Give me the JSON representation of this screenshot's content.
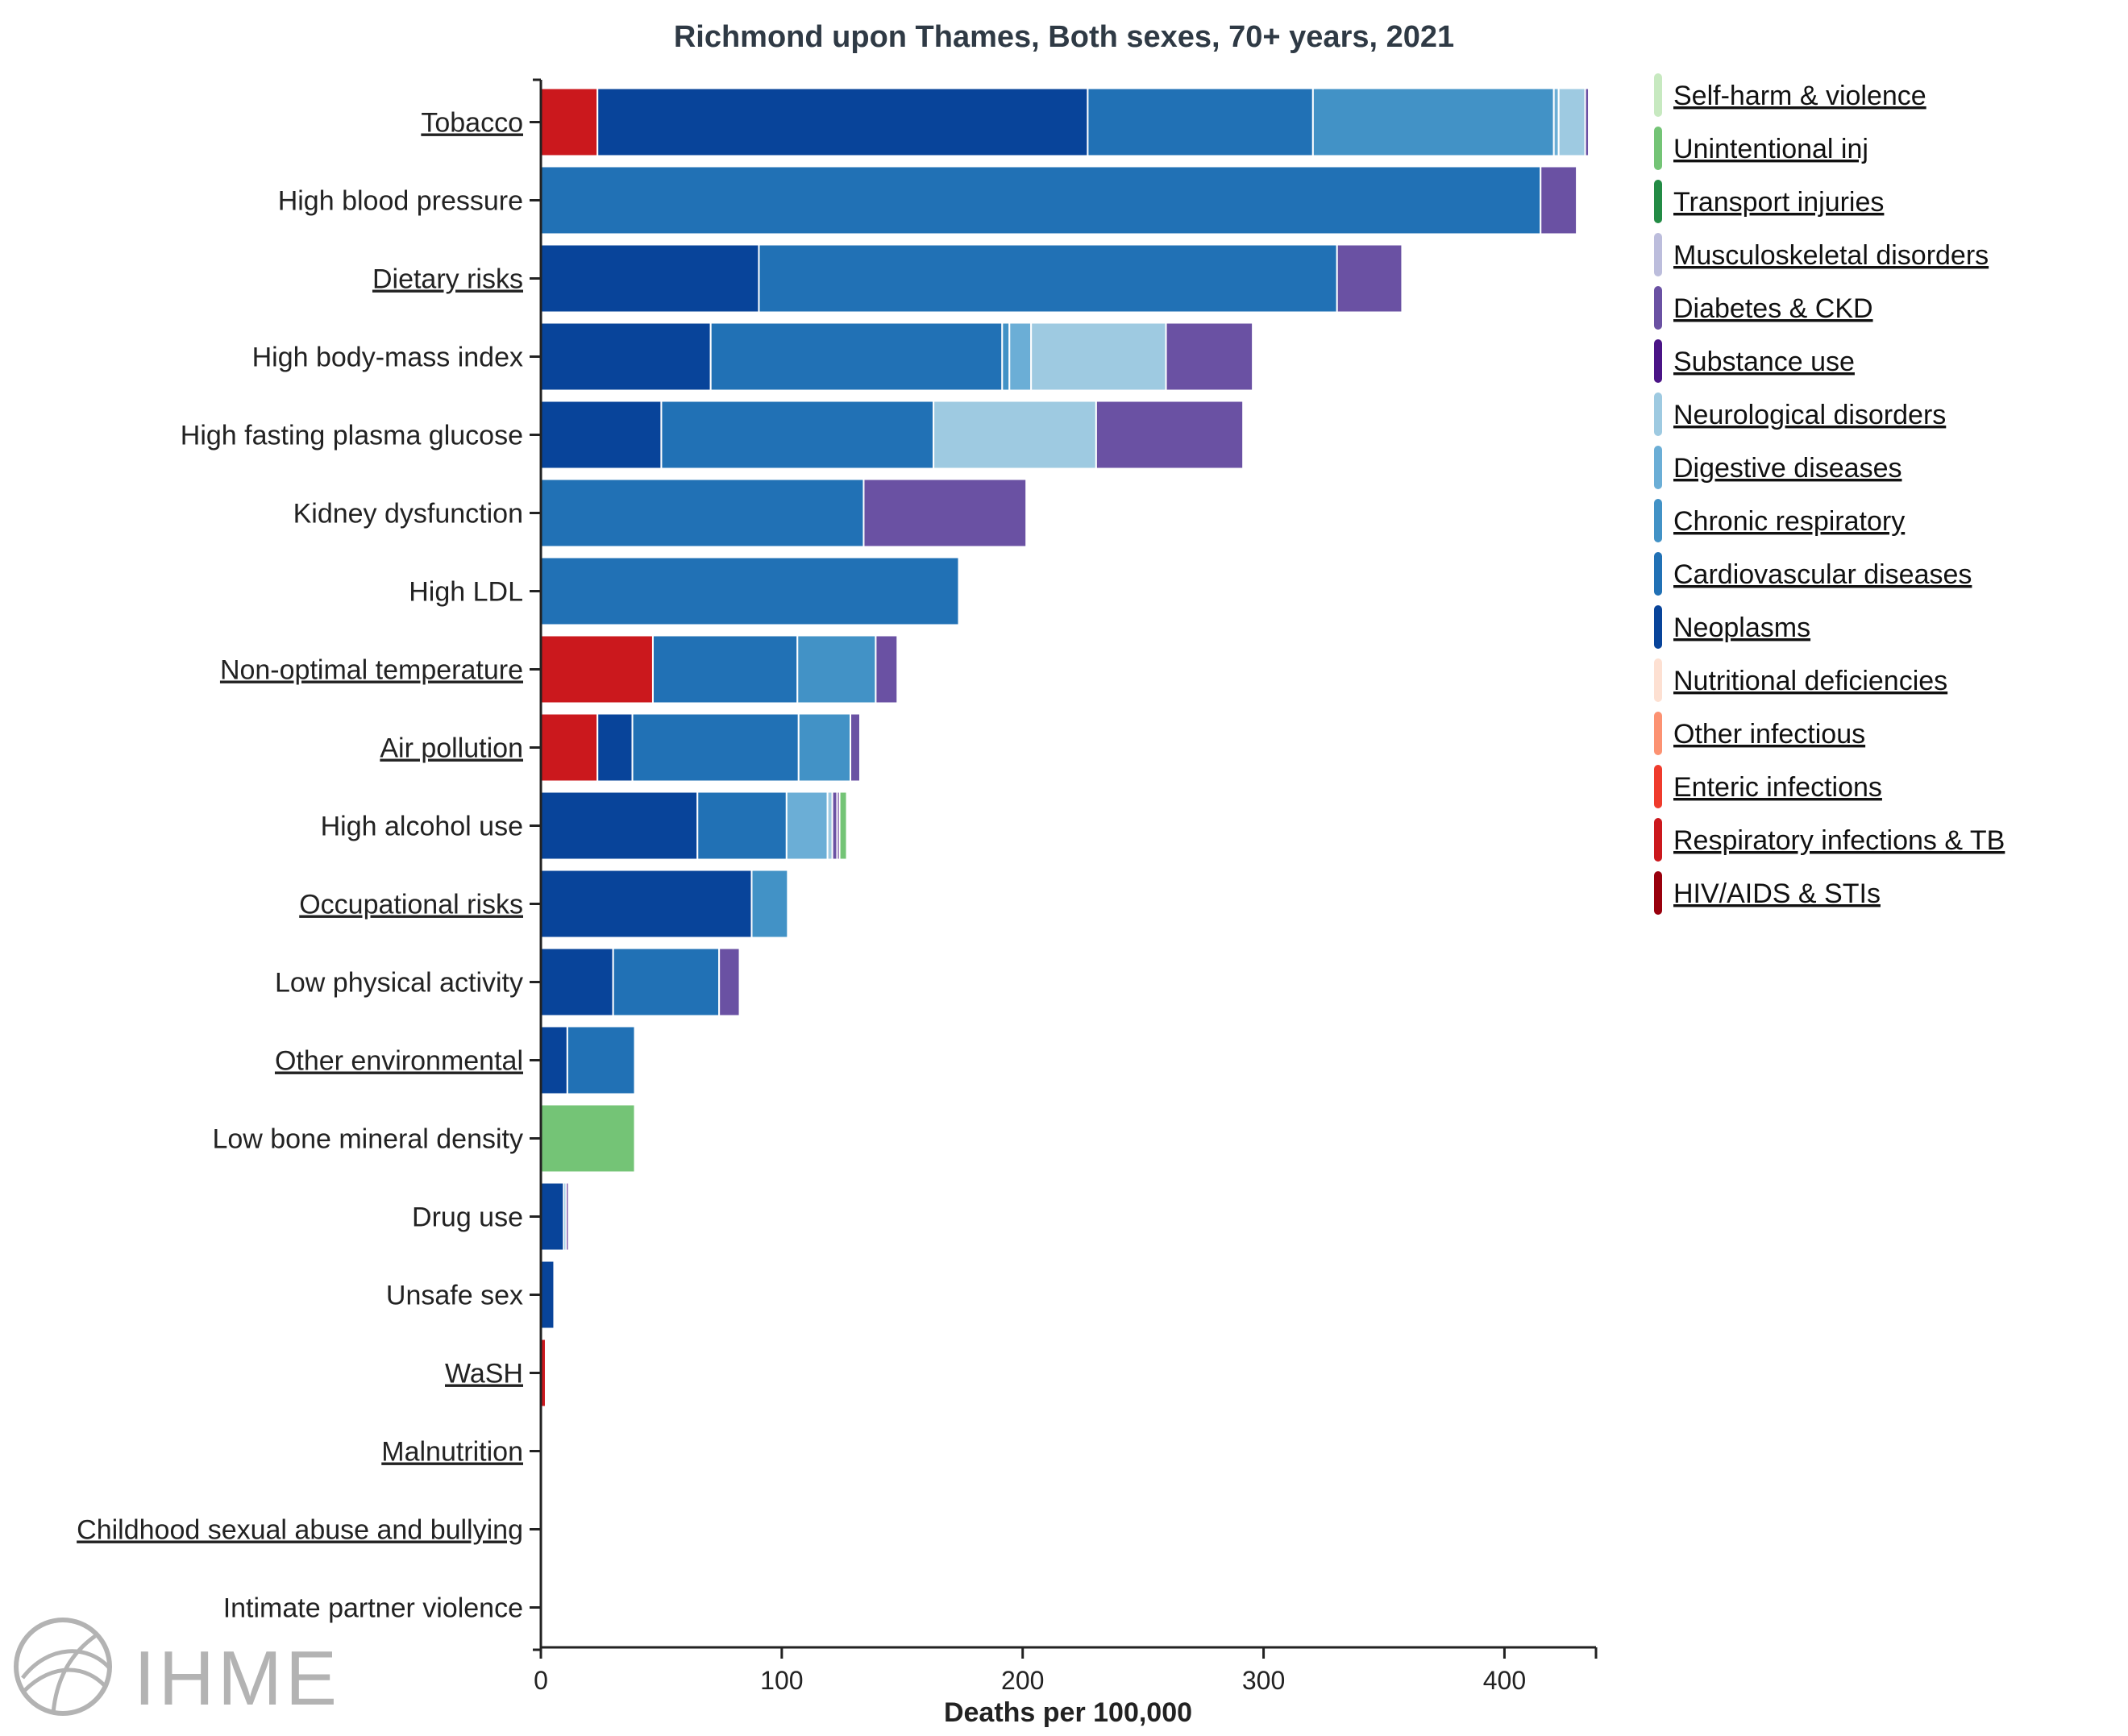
{
  "title": "Richmond upon Thames, Both sexes, 70+ years, 2021",
  "logo": {
    "text": "IHME"
  },
  "colors": {
    "Self-harm & violence": "#c7e9c0",
    "Unintentional inj": "#74c476",
    "Transport injuries": "#238b45",
    "Musculoskeletal disorders": "#bcbddc",
    "Diabetes & CKD": "#6a51a3",
    "Substance use": "#4a1486",
    "Neurological disorders": "#9ecae1",
    "Digestive diseases": "#6baed6",
    "Chronic respiratory": "#4292c6",
    "Cardiovascular diseases": "#2171b5",
    "Neoplasms": "#08449a",
    "Nutritional deficiencies": "#fde0d2",
    "Other infectious": "#fc9272",
    "Enteric infections": "#ef3b2c",
    "Respiratory infections & TB": "#cb181d",
    "HIV/AIDS & STIs": "#99000d"
  },
  "chart_data": {
    "type": "bar",
    "orientation": "horizontal",
    "stacked": true,
    "title": "Richmond upon Thames, Both sexes, 70+ years, 2021",
    "xlabel": "Deaths per 100,000",
    "ylabel": "",
    "xlim": [
      0,
      438
    ],
    "xticks": [
      0,
      100,
      200,
      300,
      400
    ],
    "grid": false,
    "legend_position": "right",
    "legend": [
      "Self-harm & violence",
      "Unintentional inj",
      "Transport injuries",
      "Musculoskeletal disorders",
      "Diabetes & CKD",
      "Substance use",
      "Neurological disorders",
      "Digestive diseases",
      "Chronic respiratory",
      "Cardiovascular diseases",
      "Neoplasms",
      "Nutritional deficiencies",
      "Other infectious",
      "Enteric infections",
      "Respiratory infections & TB",
      "HIV/AIDS & STIs"
    ],
    "categories": [
      {
        "label": "Tobacco",
        "link": true
      },
      {
        "label": "High blood pressure",
        "link": false
      },
      {
        "label": "Dietary risks",
        "link": true
      },
      {
        "label": "High body-mass index",
        "link": false
      },
      {
        "label": "High fasting plasma glucose",
        "link": false
      },
      {
        "label": "Kidney dysfunction",
        "link": false
      },
      {
        "label": "High LDL",
        "link": false
      },
      {
        "label": "Non-optimal temperature",
        "link": true
      },
      {
        "label": "Air pollution",
        "link": true
      },
      {
        "label": "High alcohol use",
        "link": false
      },
      {
        "label": "Occupational risks",
        "link": true
      },
      {
        "label": "Low physical activity",
        "link": false
      },
      {
        "label": "Other environmental",
        "link": true
      },
      {
        "label": "Low bone mineral density",
        "link": false
      },
      {
        "label": "Drug use",
        "link": false
      },
      {
        "label": "Unsafe sex",
        "link": false
      },
      {
        "label": "WaSH",
        "link": true
      },
      {
        "label": "Malnutrition",
        "link": true
      },
      {
        "label": "Childhood sexual abuse and bullying",
        "link": true
      },
      {
        "label": "Intimate partner violence",
        "link": false
      }
    ],
    "bars": [
      [
        {
          "cause": "Respiratory infections & TB",
          "value": 23.5
        },
        {
          "cause": "Neoplasms",
          "value": 203.5
        },
        {
          "cause": "Cardiovascular diseases",
          "value": 93.5
        },
        {
          "cause": "Chronic respiratory",
          "value": 100
        },
        {
          "cause": "Digestive diseases",
          "value": 2
        },
        {
          "cause": "Neurological disorders",
          "value": 11
        },
        {
          "cause": "Diabetes & CKD",
          "value": 1.5
        }
      ],
      [
        {
          "cause": "Cardiovascular diseases",
          "value": 415
        },
        {
          "cause": "Diabetes & CKD",
          "value": 15
        }
      ],
      [
        {
          "cause": "Neoplasms",
          "value": 90.5
        },
        {
          "cause": "Cardiovascular diseases",
          "value": 240
        },
        {
          "cause": "Diabetes & CKD",
          "value": 27
        }
      ],
      [
        {
          "cause": "Neoplasms",
          "value": 70.5
        },
        {
          "cause": "Cardiovascular diseases",
          "value": 121
        },
        {
          "cause": "Chronic respiratory",
          "value": 3
        },
        {
          "cause": "Digestive diseases",
          "value": 9
        },
        {
          "cause": "Neurological disorders",
          "value": 56
        },
        {
          "cause": "Diabetes & CKD",
          "value": 36
        }
      ],
      [
        {
          "cause": "Neoplasms",
          "value": 50
        },
        {
          "cause": "Cardiovascular diseases",
          "value": 113
        },
        {
          "cause": "Neurological disorders",
          "value": 67.5
        },
        {
          "cause": "Diabetes & CKD",
          "value": 61
        }
      ],
      [
        {
          "cause": "Cardiovascular diseases",
          "value": 134
        },
        {
          "cause": "Diabetes & CKD",
          "value": 67.5
        }
      ],
      [
        {
          "cause": "Cardiovascular diseases",
          "value": 173.5
        }
      ],
      [
        {
          "cause": "Respiratory infections & TB",
          "value": 46.5
        },
        {
          "cause": "Cardiovascular diseases",
          "value": 60
        },
        {
          "cause": "Chronic respiratory",
          "value": 32.5
        },
        {
          "cause": "Diabetes & CKD",
          "value": 9
        }
      ],
      [
        {
          "cause": "Respiratory infections & TB",
          "value": 23.5
        },
        {
          "cause": "Neoplasms",
          "value": 14.5
        },
        {
          "cause": "Cardiovascular diseases",
          "value": 69
        },
        {
          "cause": "Chronic respiratory",
          "value": 21.5
        },
        {
          "cause": "Diabetes & CKD",
          "value": 4
        }
      ],
      [
        {
          "cause": "Neoplasms",
          "value": 65
        },
        {
          "cause": "Cardiovascular diseases",
          "value": 37
        },
        {
          "cause": "Digestive diseases",
          "value": 17
        },
        {
          "cause": "Neurological disorders",
          "value": 2
        },
        {
          "cause": "Diabetes & CKD",
          "value": 2
        },
        {
          "cause": "Substance use",
          "value": 1
        },
        {
          "cause": "Unintentional inj",
          "value": 3
        }
      ],
      [
        {
          "cause": "Neoplasms",
          "value": 87.5
        },
        {
          "cause": "Chronic respiratory",
          "value": 15
        }
      ],
      [
        {
          "cause": "Neoplasms",
          "value": 30
        },
        {
          "cause": "Cardiovascular diseases",
          "value": 44
        },
        {
          "cause": "Diabetes & CKD",
          "value": 8.5
        }
      ],
      [
        {
          "cause": "Neoplasms",
          "value": 11
        },
        {
          "cause": "Cardiovascular diseases",
          "value": 28
        }
      ],
      [
        {
          "cause": "Unintentional inj",
          "value": 39
        }
      ],
      [
        {
          "cause": "Neoplasms",
          "value": 9.5
        },
        {
          "cause": "Digestive diseases",
          "value": 1
        },
        {
          "cause": "Substance use",
          "value": 1
        }
      ],
      [
        {
          "cause": "Neoplasms",
          "value": 5.5
        }
      ],
      [
        {
          "cause": "Respiratory infections & TB",
          "value": 2
        }
      ],
      [],
      [],
      []
    ]
  }
}
